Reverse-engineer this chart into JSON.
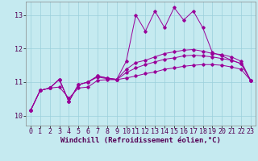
{
  "title": "",
  "xlabel": "Windchill (Refroidissement éolien,°C)",
  "ylabel": "",
  "background_color": "#c5eaf0",
  "grid_color": "#9bcfdb",
  "line_color": "#990099",
  "xlim": [
    -0.5,
    23.5
  ],
  "ylim": [
    9.7,
    13.4
  ],
  "yticks": [
    10,
    11,
    12,
    13
  ],
  "xticks": [
    0,
    1,
    2,
    3,
    4,
    5,
    6,
    7,
    8,
    9,
    10,
    11,
    12,
    13,
    14,
    15,
    16,
    17,
    18,
    19,
    20,
    21,
    22,
    23
  ],
  "line1_x": [
    0,
    1,
    2,
    3,
    4,
    5,
    6,
    7,
    8,
    9,
    10,
    11,
    12,
    13,
    14,
    15,
    16,
    17,
    18,
    19,
    20,
    21,
    22,
    23
  ],
  "line1_y": [
    10.15,
    10.75,
    10.82,
    10.85,
    10.52,
    10.82,
    10.85,
    11.05,
    11.07,
    11.07,
    11.12,
    11.18,
    11.25,
    11.3,
    11.38,
    11.42,
    11.47,
    11.5,
    11.52,
    11.52,
    11.5,
    11.45,
    11.38,
    11.05
  ],
  "line2_x": [
    0,
    1,
    2,
    3,
    4,
    5,
    6,
    7,
    8,
    9,
    10,
    11,
    12,
    13,
    14,
    15,
    16,
    17,
    18,
    19,
    20,
    21,
    22,
    23
  ],
  "line2_y": [
    10.15,
    10.75,
    10.82,
    11.08,
    10.42,
    10.92,
    11.0,
    11.15,
    11.1,
    11.07,
    11.28,
    11.42,
    11.52,
    11.6,
    11.68,
    11.72,
    11.78,
    11.8,
    11.78,
    11.75,
    11.7,
    11.65,
    11.55,
    11.05
  ],
  "line3_x": [
    0,
    1,
    2,
    3,
    4,
    5,
    6,
    7,
    8,
    9,
    10,
    11,
    12,
    13,
    14,
    15,
    16,
    17,
    18,
    19,
    20,
    21,
    22,
    23
  ],
  "line3_y": [
    10.15,
    10.75,
    10.82,
    11.08,
    10.42,
    10.92,
    11.0,
    11.18,
    11.12,
    11.08,
    11.38,
    11.58,
    11.65,
    11.75,
    11.85,
    11.9,
    11.95,
    11.97,
    11.92,
    11.85,
    11.82,
    11.75,
    11.62,
    11.05
  ],
  "line4_x": [
    0,
    1,
    2,
    3,
    4,
    5,
    6,
    7,
    8,
    9,
    10,
    11,
    12,
    13,
    14,
    15,
    16,
    17,
    18,
    19,
    20,
    21,
    22,
    23
  ],
  "line4_y": [
    10.15,
    10.75,
    10.82,
    11.08,
    10.42,
    10.92,
    11.0,
    11.18,
    11.12,
    11.08,
    11.62,
    13.0,
    12.52,
    13.12,
    12.62,
    13.22,
    12.85,
    13.12,
    12.62,
    11.88,
    11.78,
    11.65,
    11.55,
    11.05
  ],
  "xlabel_fontsize": 6.5,
  "tick_fontsize": 6.0
}
